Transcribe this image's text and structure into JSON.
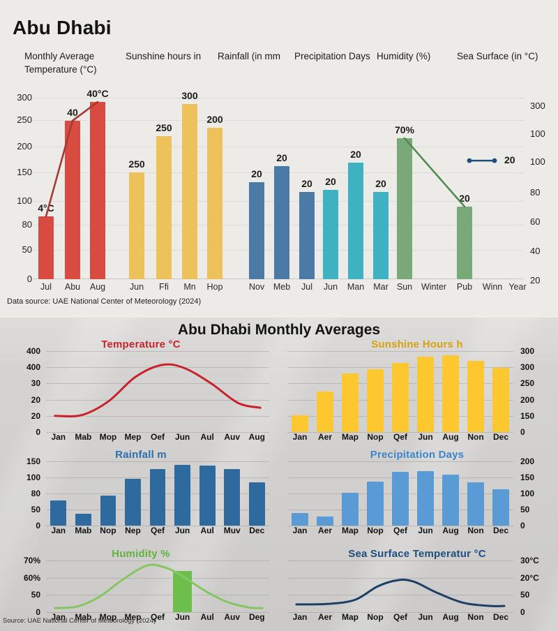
{
  "top_panel": {
    "title": "Abu Dhabi",
    "headers": [
      "Monthly Average Temperature (°C)",
      "Sunshine hours in",
      "Rainfall (in mm",
      "Precipitation Days",
      "Humidity (%)",
      "Sea Surface (in °C)"
    ],
    "data_source": "Data source: UAE National Center of Meteorology (2024)"
  },
  "bottom_panel": {
    "title": "Abu Dhabi Monthly Averages",
    "source": "Source: UAE National Center of Meteorology (2024)"
  },
  "colors": {
    "temperature_bar": "#d84b40",
    "temperature_line": "#a73a33",
    "sunshine_bar": "#eec25b",
    "rainfall_bar": "#4b7aa6",
    "precipitation_bar": "#3eb2c0",
    "humidity_bar": "#79a979",
    "humidity_line": "#4d8d51",
    "sea_surface_line": "#1c4d7d"
  },
  "chart_data": [
    {
      "id": "top-overview",
      "type": "bar",
      "title": "Abu Dhabi",
      "ylim": [
        0,
        300
      ],
      "grid": true,
      "left_axis_ticks": [
        "300",
        "250",
        "200",
        "150",
        "100",
        "80",
        "50",
        "0"
      ],
      "right_axis_ticks": [
        "300",
        "100",
        "100",
        "80",
        "60",
        "40",
        "20"
      ],
      "groups": [
        {
          "name": "temperature",
          "header": "Monthly Average Temperature (°C)",
          "color": "#d84b40",
          "overlay": "line",
          "line_color": "#a73a33",
          "bars": [
            {
              "x": "Jul",
              "value": 104,
              "label": "4°C"
            },
            {
              "x": "Abu",
              "value": 262,
              "label": "40"
            },
            {
              "x": "Aug",
              "value": 293,
              "label": "40°C"
            }
          ]
        },
        {
          "name": "sunshine",
          "header": "Sunshine hours in",
          "color": "#eec25b",
          "bars": [
            {
              "x": "Jun",
              "value": 177,
              "label": "250"
            },
            {
              "x": "Ffi",
              "value": 237,
              "label": "250"
            },
            {
              "x": "Mn",
              "value": 290,
              "label": "300"
            },
            {
              "x": "Hop",
              "value": 250,
              "label": "200"
            }
          ]
        },
        {
          "name": "rainfall",
          "header": "Rainfall (in mm",
          "color": "#4b7aa6",
          "bars": [
            {
              "x": "Nov",
              "value": 160,
              "label": "20"
            },
            {
              "x": "Meb",
              "value": 187,
              "label": "20"
            },
            {
              "x": "Jul",
              "value": 144,
              "label": "20"
            }
          ]
        },
        {
          "name": "precipitation-days",
          "header": "Precipitation Days",
          "color": "#3eb2c0",
          "bars": [
            {
              "x": "Jun",
              "value": 148,
              "label": "20"
            },
            {
              "x": "Man",
              "value": 193,
              "label": "20"
            },
            {
              "x": "Mar",
              "value": 144,
              "label": "20"
            }
          ]
        },
        {
          "name": "humidity",
          "header": "Humidity (%)",
          "color": "#79a979",
          "overlay": "line",
          "line_color": "#4d8d51",
          "bars": [
            {
              "x": "Sun",
              "value": 233,
              "label": "70%"
            },
            {
              "x": "Winter",
              "value": null,
              "label": ""
            },
            {
              "x": "Pub",
              "value": 120,
              "label": "20"
            }
          ]
        },
        {
          "name": "sea-surface",
          "header": "Sea Surface (in °C)",
          "color": "#1c4d7d",
          "overlay": "segment",
          "segment": {
            "value": 196,
            "label": "20"
          },
          "bars": [
            {
              "x": "Winn",
              "value": null,
              "label": ""
            },
            {
              "x": "Year",
              "value": null,
              "label": ""
            }
          ]
        }
      ]
    },
    {
      "id": "temperature",
      "type": "line",
      "title": "Temperature °C",
      "title_color": "#c6232b",
      "line_color": "#c8232b",
      "axis_side": "left",
      "axis_ticks": [
        "400",
        "400",
        "30",
        "20",
        "20",
        "0"
      ],
      "x_labels": [
        "Jan",
        "Mab",
        "Mop",
        "Mep",
        "Oef",
        "Jun",
        "Aul",
        "Auv",
        "Aug"
      ],
      "curve_points": [
        [
          4,
          80
        ],
        [
          16,
          79
        ],
        [
          28,
          62
        ],
        [
          40,
          32
        ],
        [
          52,
          17
        ],
        [
          62,
          21
        ],
        [
          74,
          40
        ],
        [
          86,
          64
        ],
        [
          96,
          70
        ]
      ]
    },
    {
      "id": "sunshine",
      "type": "bar",
      "title": "Sunshine Hours h",
      "title_color": "#d7a210",
      "bar_color": "#fdc82f",
      "axis_side": "right",
      "axis_ticks": [
        "300",
        "300",
        "250",
        "200",
        "150",
        "0"
      ],
      "x_labels": [
        "Jan",
        "Aer",
        "Map",
        "Nop",
        "Qef",
        "Jun",
        "Aug",
        "Non",
        "Dec"
      ],
      "values_pct": [
        21,
        50,
        72,
        78,
        85,
        93,
        95,
        88,
        79
      ]
    },
    {
      "id": "rainfall",
      "type": "bar",
      "title": "Rainfall m",
      "title_color": "#2e6fad",
      "bar_color": "#2f6a9e",
      "axis_side": "left",
      "axis_ticks": [
        "150",
        "100",
        "80",
        "50",
        "0"
      ],
      "x_labels": [
        "Jan",
        "Mab",
        "Nop",
        "Nep",
        "Qef",
        "Jun",
        "Aul",
        "Muv",
        "Dec"
      ],
      "values_pct": [
        39,
        18,
        47,
        73,
        88,
        95,
        93,
        88,
        67
      ]
    },
    {
      "id": "precipitation",
      "type": "bar",
      "title": "Precipitation Days",
      "title_color": "#3e86c7",
      "bar_color": "#5b9bd5",
      "axis_side": "right",
      "axis_ticks": [
        "200",
        "150",
        "100",
        "50",
        "0"
      ],
      "x_labels": [
        "Jan",
        "Aer",
        "Map",
        "Nop",
        "Qef",
        "Jun",
        "Aug",
        "Non",
        "Dec"
      ],
      "values_pct": [
        20,
        14,
        51,
        68,
        84,
        85,
        79,
        67,
        57
      ]
    },
    {
      "id": "humidity",
      "type": "line",
      "title": "Humidity %",
      "title_color": "#64b23f",
      "line_color": "#85c663",
      "axis_side": "left",
      "axis_ticks": [
        "70%",
        "60%",
        "50",
        "0"
      ],
      "x_labels": [
        "Jan",
        "Mab",
        "Mop",
        "Mep",
        "Qef",
        "Jun",
        "Aul",
        "Auv",
        "Deg"
      ],
      "curve_points": [
        [
          4,
          92
        ],
        [
          14,
          89
        ],
        [
          24,
          70
        ],
        [
          34,
          38
        ],
        [
          45,
          10
        ],
        [
          53,
          13
        ],
        [
          61,
          30
        ],
        [
          71,
          58
        ],
        [
          81,
          80
        ],
        [
          91,
          91
        ],
        [
          97,
          92
        ]
      ],
      "highlight_bar": {
        "x_index": 5,
        "top_pct": 20,
        "color": "#6cbf4a"
      }
    },
    {
      "id": "sea-surface",
      "type": "line",
      "title": "Sea Surface Temperatur °C",
      "title_color": "#1d4e7e",
      "line_color": "#1d3f66",
      "axis_side": "right",
      "axis_ticks": [
        "30°C",
        "20°C",
        "50",
        "0"
      ],
      "x_labels": [
        "Jan",
        "Aer",
        "Map",
        "Nop",
        "Qef",
        "Jun",
        "Aug",
        "Non",
        "Dec"
      ],
      "curve_points": [
        [
          4,
          85
        ],
        [
          18,
          84
        ],
        [
          30,
          76
        ],
        [
          40,
          50
        ],
        [
          49,
          38
        ],
        [
          56,
          41
        ],
        [
          66,
          62
        ],
        [
          78,
          82
        ],
        [
          90,
          88
        ],
        [
          96,
          88
        ]
      ]
    }
  ]
}
